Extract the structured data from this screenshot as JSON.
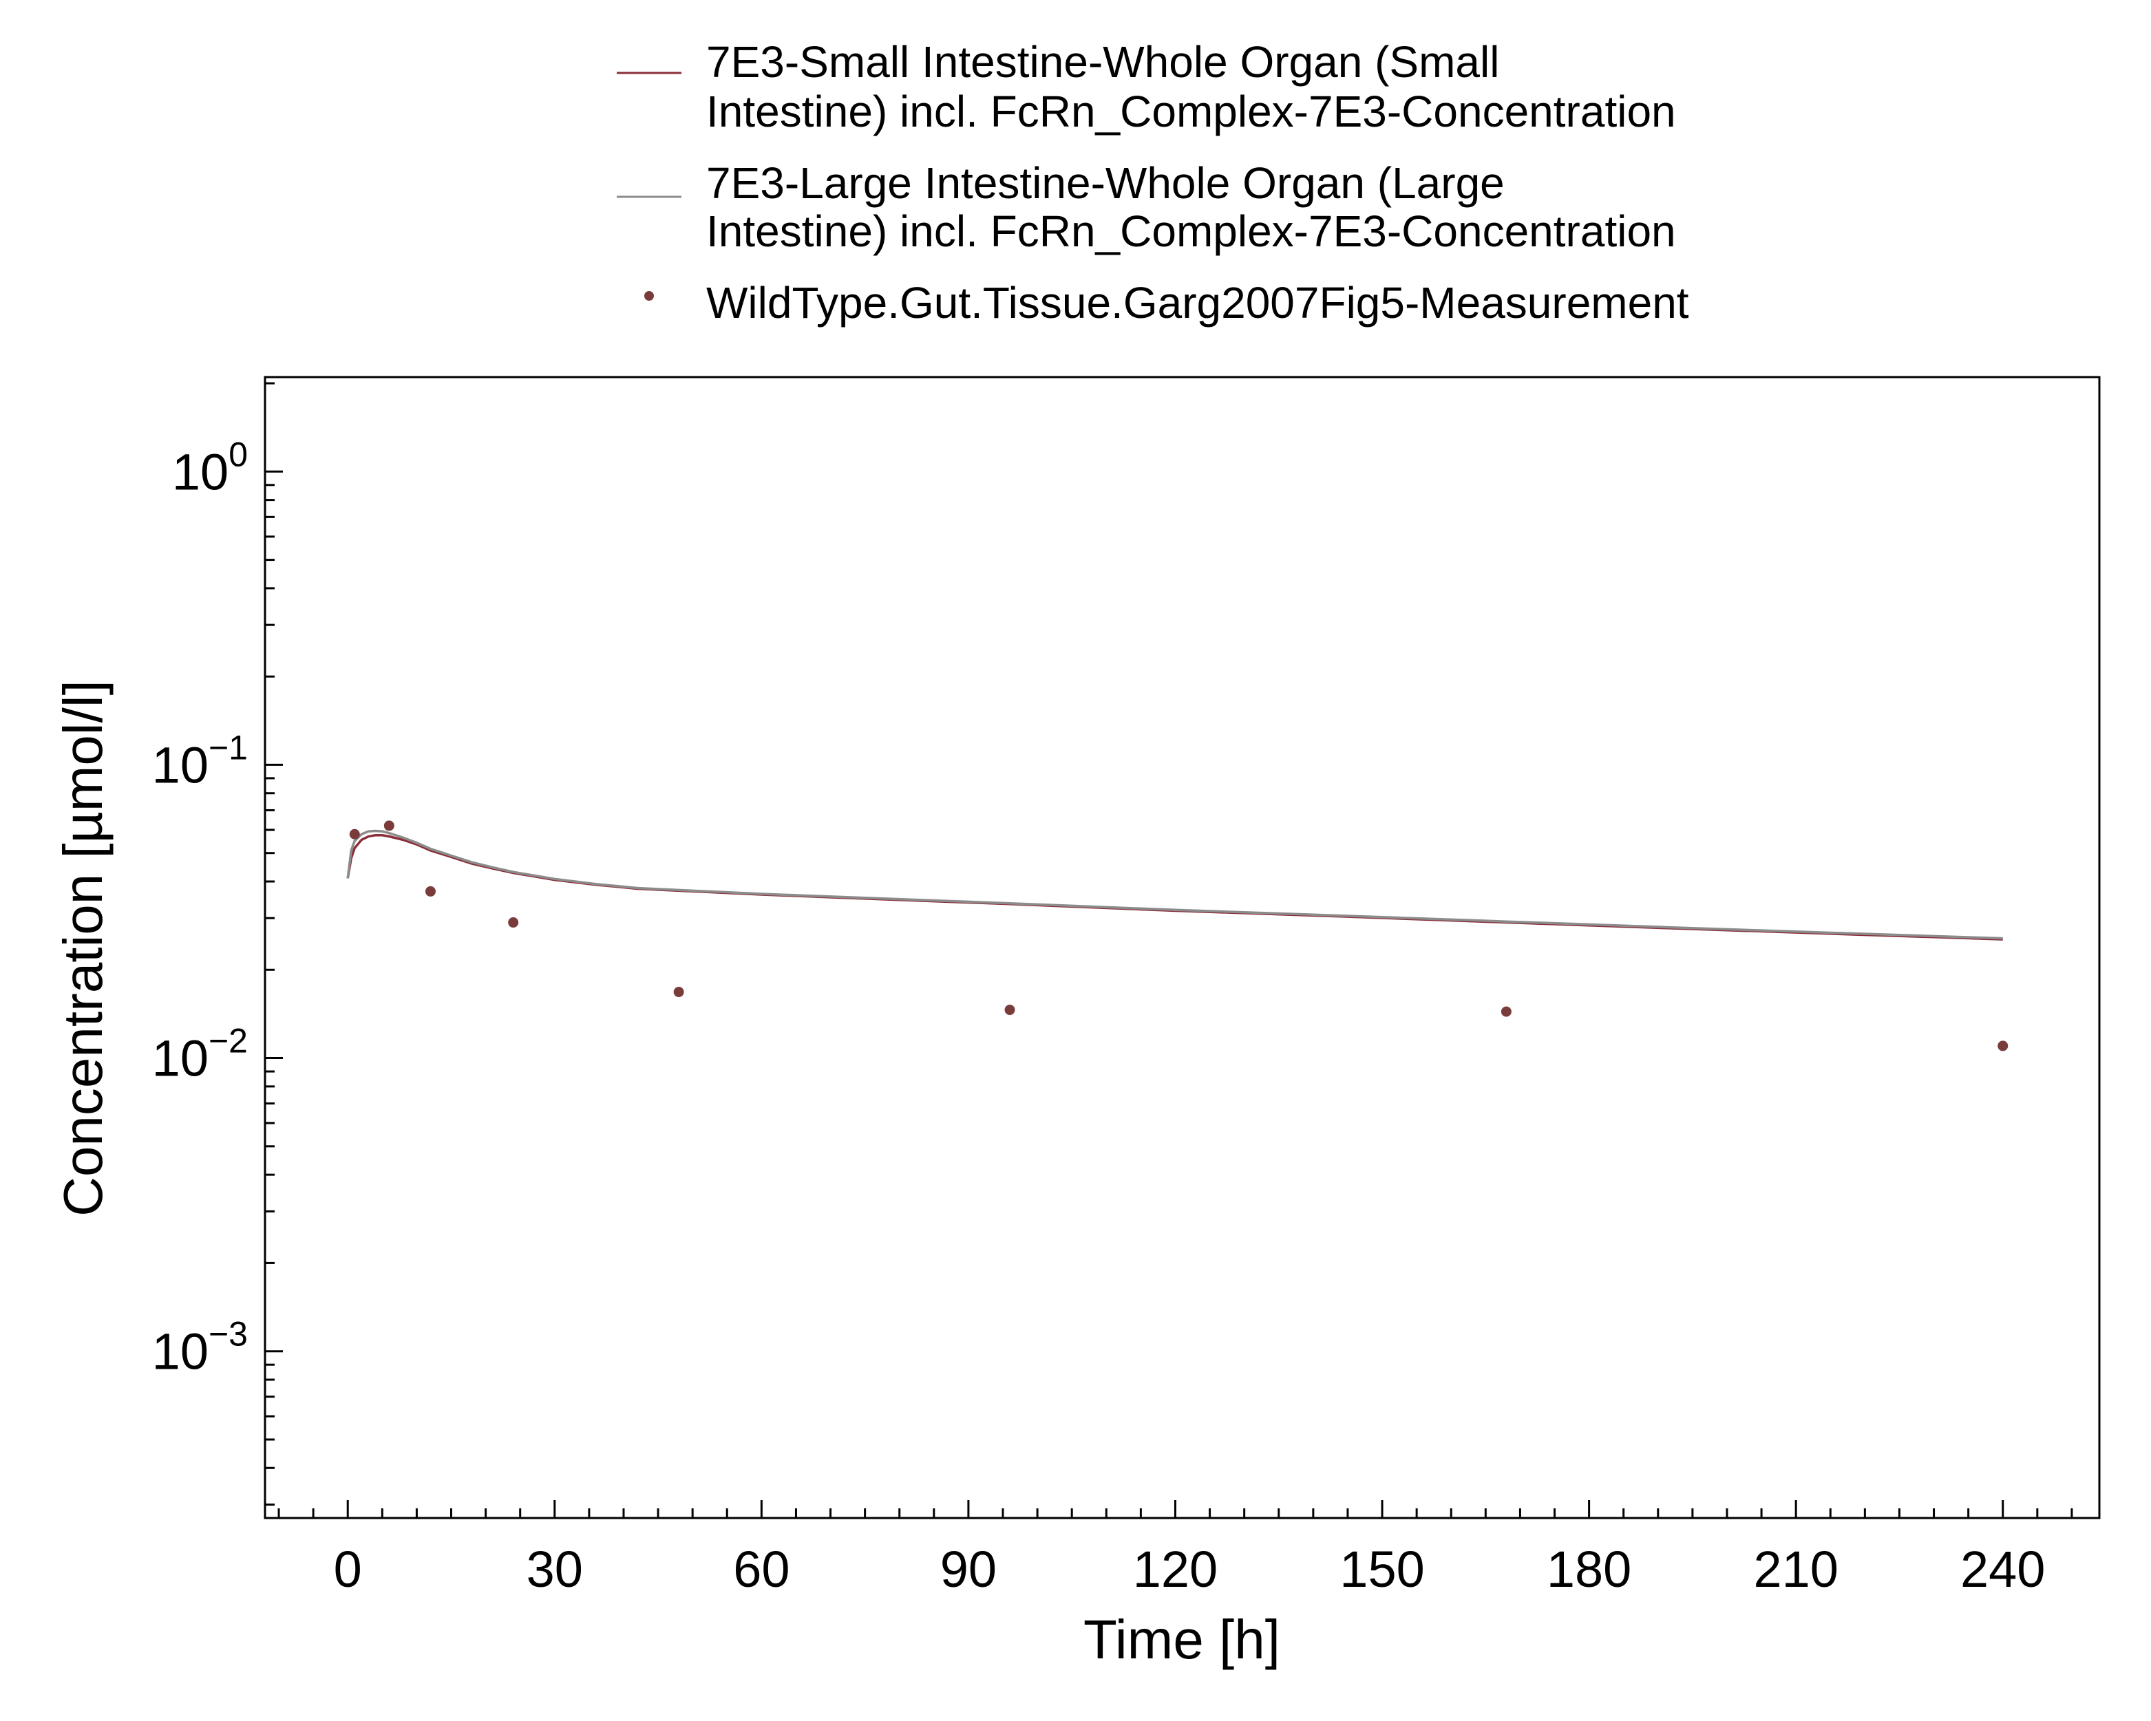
{
  "chart_data": {
    "type": "line",
    "xlabel": "Time [h]",
    "ylabel": "Concentration [µmol/l]",
    "xlim": [
      -12,
      254
    ],
    "ylim": [
      0.00027,
      2.1
    ],
    "yscale": "log",
    "x_ticks": [
      0,
      30,
      60,
      90,
      120,
      150,
      180,
      210,
      240
    ],
    "y_ticks": [
      {
        "value": 1,
        "base": "10",
        "exp": "0"
      },
      {
        "value": 0.1,
        "base": "10",
        "exp": "−1"
      },
      {
        "value": 0.01,
        "base": "10",
        "exp": "−2"
      },
      {
        "value": 0.001,
        "base": "10",
        "exp": "−3"
      }
    ],
    "legend_position": "top-center",
    "grid": false,
    "series": [
      {
        "name": "7E3-Small Intestine-Whole Organ (Small Intestine) incl. FcRn_Complex-7E3-Concentration",
        "legend_lines": [
          "7E3-Small Intestine-Whole Organ (Small",
          "Intestine) incl. FcRn_Complex-7E3-Concentration"
        ],
        "type": "line",
        "color": "#8b2e3a",
        "x": [
          0,
          0.5,
          1,
          2,
          3,
          4,
          5,
          6,
          8,
          10,
          12,
          15,
          18,
          21,
          24,
          30,
          36,
          42,
          48,
          60,
          72,
          96,
          120,
          144,
          168,
          192,
          216,
          240
        ],
        "y": [
          0.041,
          0.048,
          0.052,
          0.0555,
          0.057,
          0.0575,
          0.0575,
          0.057,
          0.0555,
          0.0535,
          0.051,
          0.0485,
          0.046,
          0.0443,
          0.0428,
          0.0405,
          0.039,
          0.0378,
          0.0372,
          0.0361,
          0.0352,
          0.0335,
          0.0318,
          0.0304,
          0.029,
          0.0277,
          0.0265,
          0.0254
        ]
      },
      {
        "name": "7E3-Large Intestine-Whole Organ (Large Intestine) incl. FcRn_Complex-7E3-Concentration",
        "legend_lines": [
          "7E3-Large Intestine-Whole Organ (Large",
          "Intestine) incl. FcRn_Complex-7E3-Concentration"
        ],
        "type": "line",
        "color": "#8c8c8c",
        "x": [
          0,
          0.5,
          1,
          2,
          3,
          4,
          5,
          6,
          8,
          10,
          12,
          15,
          18,
          21,
          24,
          30,
          36,
          42,
          48,
          60,
          72,
          96,
          120,
          144,
          168,
          192,
          216,
          240
        ],
        "y": [
          0.041,
          0.051,
          0.055,
          0.058,
          0.0593,
          0.0595,
          0.0593,
          0.0585,
          0.0565,
          0.0542,
          0.0517,
          0.049,
          0.0465,
          0.0447,
          0.0431,
          0.0408,
          0.0392,
          0.038,
          0.0374,
          0.0363,
          0.0354,
          0.0337,
          0.032,
          0.0306,
          0.0292,
          0.0279,
          0.0267,
          0.0256
        ]
      },
      {
        "name": "WildType.Gut.Tissue.Garg2007Fig5-Measurement",
        "legend_lines": [
          "WildType.Gut.Tissue.Garg2007Fig5-Measurement"
        ],
        "type": "scatter",
        "color": "#7a3b3b",
        "x": [
          1,
          6,
          12,
          24,
          48,
          96,
          168,
          240
        ],
        "y": [
          0.058,
          0.062,
          0.037,
          0.029,
          0.0168,
          0.0146,
          0.0144,
          0.011
        ]
      }
    ]
  }
}
